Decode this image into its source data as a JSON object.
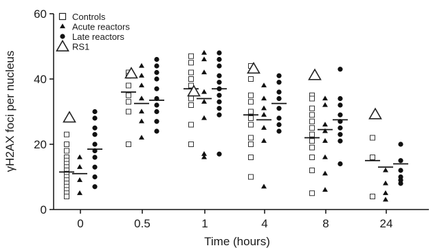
{
  "chart_data": {
    "type": "scatter",
    "xlabel": "Time (hours)",
    "ylabel": "γH2AX foci per nucleus",
    "categories": [
      "0",
      "0.5",
      "1",
      "4",
      "8",
      "24"
    ],
    "ylim": [
      0,
      60
    ],
    "yticks": [
      "0",
      "20",
      "40",
      "60"
    ],
    "grid": false,
    "legend_position": "top-left",
    "series": [
      {
        "name": "Controls",
        "marker": "open-square",
        "values": [
          [
            23,
            20,
            18,
            16,
            15,
            14,
            13,
            12,
            11,
            10,
            9,
            8,
            7,
            6,
            5,
            4
          ],
          [
            42,
            41,
            38,
            35,
            33,
            30,
            20
          ],
          [
            47,
            45,
            42,
            40,
            38,
            34,
            32,
            26,
            20
          ],
          [
            44,
            40,
            35,
            33,
            30,
            28,
            26,
            22,
            20,
            16,
            10
          ],
          [
            35,
            34,
            31,
            29,
            27,
            25,
            23,
            21,
            19,
            16,
            12,
            5
          ],
          [
            22,
            16,
            4
          ]
        ],
        "means": [
          11.5,
          36,
          37,
          29,
          22,
          15
        ]
      },
      {
        "name": "Acute reactors",
        "marker": "filled-triangle",
        "values": [
          [
            16,
            13,
            9,
            5
          ],
          [
            44,
            41,
            38,
            34,
            30,
            27,
            22
          ],
          [
            48,
            46,
            42,
            36,
            33,
            28,
            17,
            16
          ],
          [
            38,
            34,
            31,
            29,
            25,
            21,
            7
          ],
          [
            34,
            32,
            26,
            24,
            21,
            16,
            11,
            6
          ],
          [
            12,
            8,
            5,
            3
          ]
        ],
        "means": [
          11,
          32.5,
          34,
          27.5,
          24.5,
          13
        ]
      },
      {
        "name": "Late reactors",
        "marker": "filled-circle",
        "values": [
          [
            30,
            28,
            25,
            23,
            20,
            18,
            16,
            13,
            10,
            7
          ],
          [
            46,
            44,
            42,
            40,
            37,
            34,
            32,
            30,
            27,
            24
          ],
          [
            48,
            46,
            44,
            41,
            39,
            37,
            35,
            33,
            31,
            29,
            17
          ],
          [
            41,
            39,
            36,
            34,
            31,
            28,
            26,
            24
          ],
          [
            43,
            34,
            32,
            29,
            27,
            25,
            23,
            21,
            14
          ],
          [
            20,
            15,
            12,
            10,
            9,
            8
          ]
        ],
        "means": [
          18.5,
          33.5,
          37,
          32.5,
          27.5,
          14
        ]
      },
      {
        "name": "RS1",
        "marker": "open-triangle",
        "values": [
          28,
          41.5,
          36,
          43,
          41,
          29
        ]
      }
    ]
  }
}
